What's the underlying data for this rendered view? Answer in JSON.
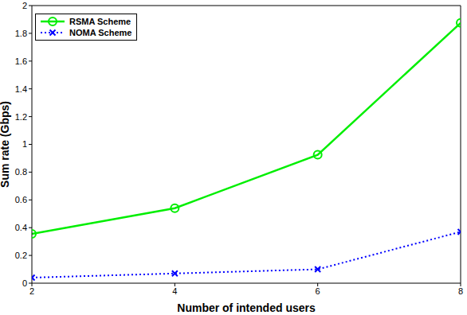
{
  "chart_data": {
    "type": "line",
    "x_label": "Number of intended users",
    "y_label": "Sum rate (Gbps)",
    "x": [
      2,
      4,
      6,
      8
    ],
    "xlim": [
      2,
      8
    ],
    "xticks": [
      2,
      4,
      6,
      8
    ],
    "ylim": [
      0,
      2
    ],
    "yticks": [
      0,
      0.2,
      0.4,
      0.6,
      0.8,
      1,
      1.2,
      1.4,
      1.6,
      1.8,
      2
    ],
    "grid": false,
    "legend": "top-left",
    "series": [
      {
        "name": "RSMA Scheme",
        "color": "#00ee00",
        "marker": "circle",
        "line_style": "solid",
        "values": [
          0.355,
          0.54,
          0.925,
          1.875
        ]
      },
      {
        "name": "NOMA Scheme",
        "color": "#0000ff",
        "marker": "x",
        "line_style": "dotted",
        "values": [
          0.04,
          0.07,
          0.1,
          0.37
        ]
      }
    ]
  }
}
